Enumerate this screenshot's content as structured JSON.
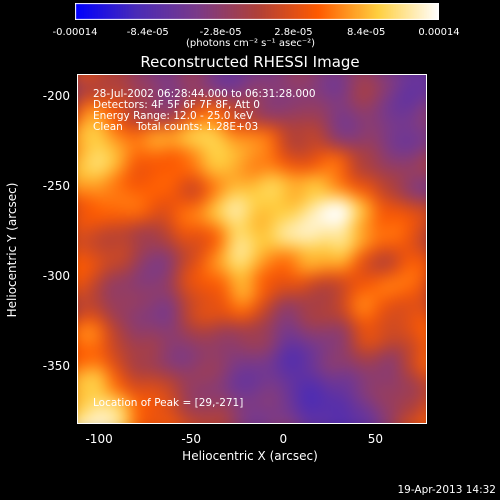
{
  "colorbar": {
    "ticks": [
      "-0.00014",
      "-8.4e-05",
      "-2.8e-05",
      "2.8e-05",
      "8.4e-05",
      "0.00014"
    ],
    "units": "(photons cm⁻² s⁻¹ asec⁻²)",
    "min": -0.00014,
    "max": 0.00014,
    "colors": [
      "#0000ff",
      "#4a2bb8",
      "#7a3a8a",
      "#b0403a",
      "#ff5a00",
      "#ffd040",
      "#ffffff"
    ]
  },
  "title": "Reconstructed RHESSI Image",
  "annotations": [
    "28-Jul-2002 06:28:44.000 to 06:31:28.000",
    "Detectors: 4F 5F 6F 7F 8F, Att 0",
    "Energy Range: 12.0 - 25.0 keV",
    "Clean    Total counts: 1.28E+03"
  ],
  "peak_note": "Location of Peak = [29,-271]",
  "xlabel": "Heliocentric X (arcsec)",
  "ylabel": "Heliocentric Y (arcsec)",
  "x_ticks": [
    "-100",
    "-50",
    "0",
    "50"
  ],
  "y_ticks": [
    "-200",
    "-250",
    "-300",
    "-350"
  ],
  "timestamp": "19-Apr-2013 14:32",
  "image": {
    "xlim": [
      -112,
      78
    ],
    "ylim": [
      -382,
      -188
    ],
    "grid": [
      [
        0.05,
        0.15,
        0.1,
        -0.2,
        -0.3,
        -0.25,
        -0.35,
        -0.4,
        -0.3,
        -0.25,
        -0.3,
        -0.2,
        -0.15,
        -0.3,
        -0.6,
        -0.5
      ],
      [
        -0.2,
        0.0,
        0.1,
        -0.25,
        -0.3,
        -0.2,
        -0.25,
        -0.35,
        -0.3,
        -0.2,
        -0.25,
        -0.3,
        -0.15,
        -0.25,
        -0.5,
        -0.4
      ],
      [
        0.1,
        0.45,
        0.3,
        -0.1,
        -0.15,
        0.2,
        0.35,
        0.1,
        -0.2,
        -0.1,
        -0.25,
        -0.3,
        -0.2,
        -0.3,
        -0.4,
        -0.3
      ],
      [
        0.55,
        0.7,
        0.55,
        0.4,
        0.5,
        0.75,
        0.7,
        0.55,
        0.35,
        0.05,
        0.1,
        -0.2,
        -0.25,
        -0.4,
        -0.35,
        -0.3
      ],
      [
        0.6,
        0.7,
        0.55,
        0.35,
        0.3,
        0.45,
        0.55,
        0.6,
        0.45,
        0.3,
        0.2,
        0.35,
        0.05,
        -0.2,
        -0.15,
        -0.1
      ],
      [
        0.5,
        0.6,
        0.4,
        0.35,
        0.25,
        0.15,
        0.45,
        0.65,
        0.65,
        0.55,
        0.75,
        0.45,
        0.3,
        -0.1,
        -0.2,
        -0.3
      ],
      [
        0.15,
        0.35,
        0.25,
        0.45,
        0.2,
        0.45,
        0.6,
        0.8,
        0.7,
        0.65,
        0.9,
        1.0,
        0.7,
        0.3,
        0.25,
        0.1
      ],
      [
        0.05,
        0.2,
        0.05,
        -0.1,
        -0.05,
        0.2,
        0.4,
        0.75,
        0.65,
        0.75,
        0.95,
        0.85,
        0.55,
        0.35,
        0.2,
        0.05
      ],
      [
        0.3,
        0.25,
        0.05,
        -0.2,
        -0.2,
        0.1,
        0.5,
        0.7,
        0.6,
        0.4,
        0.6,
        0.55,
        0.2,
        0.1,
        0.3,
        0.2
      ],
      [
        0.2,
        0.1,
        -0.1,
        -0.3,
        -0.2,
        0.15,
        0.4,
        0.6,
        0.3,
        0.15,
        0.05,
        0.15,
        0.25,
        0.45,
        0.3,
        0.1
      ],
      [
        0.0,
        0.05,
        -0.15,
        -0.3,
        -0.25,
        0.1,
        0.2,
        0.35,
        0.1,
        -0.15,
        -0.1,
        0.05,
        0.4,
        0.3,
        0.2,
        0.05
      ],
      [
        0.35,
        0.45,
        0.15,
        -0.2,
        -0.25,
        -0.15,
        -0.1,
        -0.05,
        -0.2,
        -0.4,
        -0.3,
        -0.15,
        0.2,
        0.1,
        0.15,
        0.4
      ],
      [
        0.45,
        0.35,
        0.1,
        -0.1,
        -0.2,
        -0.2,
        -0.25,
        -0.3,
        -0.35,
        -0.5,
        -0.45,
        -0.25,
        -0.1,
        -0.2,
        0.2,
        0.35
      ],
      [
        0.55,
        0.7,
        0.4,
        0.2,
        0.0,
        -0.15,
        -0.25,
        -0.35,
        -0.4,
        -0.5,
        -0.6,
        -0.4,
        -0.2,
        -0.3,
        -0.1,
        0.15
      ],
      [
        0.65,
        0.85,
        0.7,
        0.35,
        0.2,
        0.0,
        -0.15,
        -0.3,
        -0.3,
        -0.35,
        -0.55,
        -0.7,
        -0.4,
        -0.2,
        0.1,
        0.3
      ],
      [
        0.8,
        0.95,
        0.8,
        0.45,
        0.3,
        0.15,
        0.05,
        -0.2,
        -0.25,
        -0.3,
        -0.5,
        -0.65,
        -0.4,
        -0.25,
        0.2,
        0.4
      ]
    ]
  }
}
